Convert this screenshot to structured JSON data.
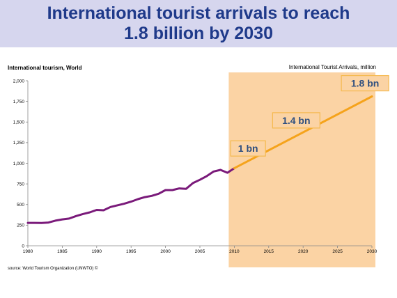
{
  "header": {
    "title_line1": "International tourist arrivals to reach",
    "title_line2": "1.8 billion by 2030"
  },
  "chart_data": {
    "type": "line",
    "title": "International tourism, World",
    "subtitle": "International Tourist Arrivals, million",
    "source": "source: World Tourism Organization (UNWTO) ©",
    "xlim": [
      1980,
      2030
    ],
    "ylim": [
      0,
      2000
    ],
    "xticks": [
      "1980",
      "1985",
      "1990",
      "1995",
      "2000",
      "2005",
      "2010",
      "2015",
      "2020",
      "2025",
      "2030"
    ],
    "yticks": [
      "0",
      "250",
      "500",
      "750",
      "1,000",
      "1,250",
      "1,500",
      "1,750",
      "2,000"
    ],
    "forecast_region": [
      2010,
      2030
    ],
    "series": [
      {
        "color": "#7a1a7a",
        "x": [
          1980,
          1981,
          1982,
          1983,
          1984,
          1985,
          1986,
          1987,
          1988,
          1989,
          1990,
          1991,
          1992,
          1993,
          1994,
          1995,
          1996,
          1997,
          1998,
          1999,
          2000,
          2001,
          2002,
          2003,
          2004,
          2005,
          2006,
          2007,
          2008,
          2009,
          2010
        ],
        "y": [
          278,
          278,
          277,
          282,
          305,
          320,
          330,
          360,
          385,
          405,
          435,
          430,
          470,
          490,
          510,
          535,
          565,
          590,
          605,
          630,
          675,
          675,
          695,
          690,
          760,
          800,
          845,
          900,
          920,
          885,
          940
        ]
      },
      {
        "color": "#f5a31b",
        "x": [
          2010,
          2030
        ],
        "y": [
          940,
          1810
        ]
      }
    ],
    "annotations": [
      {
        "label": "1 bn",
        "x": 2012,
        "y": 1180
      },
      {
        "label": "1.4 bn",
        "x": 2019,
        "y": 1520
      },
      {
        "label": "1.8 bn",
        "x": 2029,
        "y": 1970
      }
    ]
  }
}
